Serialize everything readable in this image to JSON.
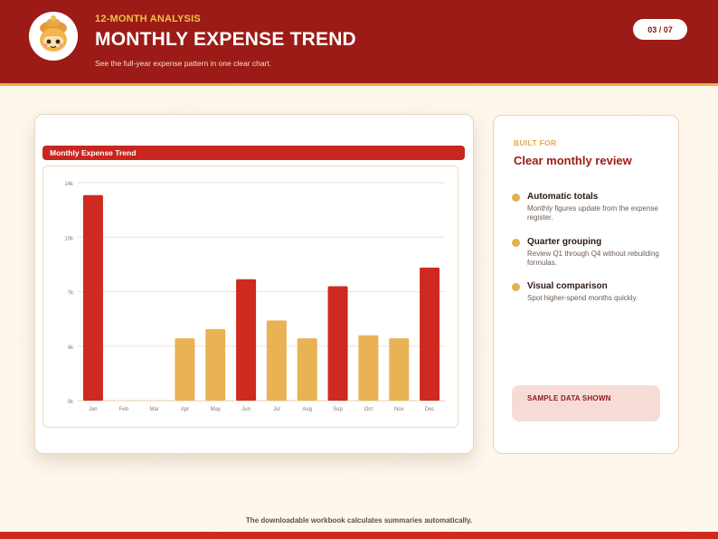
{
  "header": {
    "eyebrow": "12-MONTH ANALYSIS",
    "title": "MONTHLY EXPENSE TREND",
    "subtitle": "See the full-year expense pattern in one clear chart.",
    "page_indicator": "03 / 07",
    "logo_icon": "mascot-icon"
  },
  "chart_card": {
    "title": "Monthly Expense Trend"
  },
  "chart_data": {
    "type": "bar",
    "title": "Monthly Expense Trend",
    "categories": [
      "Jan",
      "Feb",
      "Mar",
      "Apr",
      "May",
      "Jun",
      "Jul",
      "Aug",
      "Sep",
      "Oct",
      "Nov",
      "Dec"
    ],
    "values": [
      13200,
      0,
      0,
      4000,
      4600,
      7800,
      5150,
      4000,
      7350,
      4200,
      4000,
      8550
    ],
    "bar_colors": [
      "#cf2a20",
      "#cf2a20",
      "#cf2a20",
      "#e8b255",
      "#e8b255",
      "#cf2a20",
      "#e8b255",
      "#e8b255",
      "#cf2a20",
      "#e8b255",
      "#e8b255",
      "#cf2a20"
    ],
    "ylim": [
      0,
      14000
    ],
    "yticks": [
      0,
      3500,
      7000,
      10500,
      14000
    ],
    "ytick_labels": [
      "0k",
      "4k",
      "7k",
      "10k",
      "14k"
    ],
    "grid": true,
    "xlabel": "",
    "ylabel": ""
  },
  "info": {
    "eyebrow": "BUILT FOR",
    "heading": "Clear monthly review",
    "features": [
      {
        "title": "Automatic totals",
        "desc": "Monthly figures update from the expense register."
      },
      {
        "title": "Quarter grouping",
        "desc": "Review Q1 through Q4 without rebuilding formulas."
      },
      {
        "title": "Visual comparison",
        "desc": "Spot higher-spend months quickly."
      }
    ],
    "badge": "SAMPLE DATA SHOWN"
  },
  "footer": {
    "note": "The downloadable workbook calculates summaries automatically."
  },
  "colors": {
    "brand_red": "#9c1b16",
    "accent_red": "#cf2a20",
    "accent_gold": "#e8b255"
  }
}
